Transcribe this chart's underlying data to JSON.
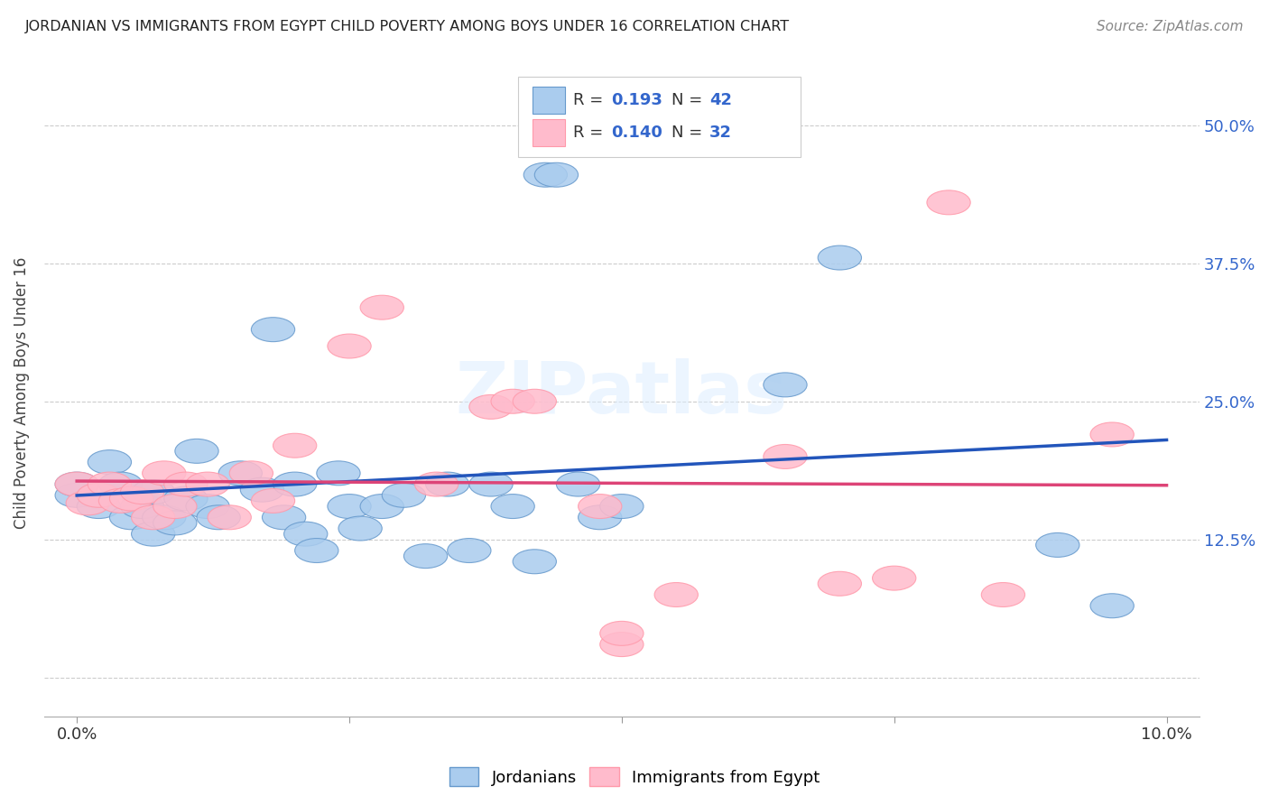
{
  "title": "JORDANIAN VS IMMIGRANTS FROM EGYPT CHILD POVERTY AMONG BOYS UNDER 16 CORRELATION CHART",
  "source": "Source: ZipAtlas.com",
  "ylabel": "Child Poverty Among Boys Under 16",
  "blue_color_face": "#AACCEE",
  "blue_color_edge": "#6699CC",
  "pink_color_face": "#FFBBCC",
  "pink_color_edge": "#FF99AA",
  "blue_line_color": "#2255BB",
  "pink_line_color": "#DD4477",
  "legend_R_blue": "0.193",
  "legend_N_blue": "42",
  "legend_R_pink": "0.140",
  "legend_N_pink": "32",
  "watermark": "ZIPatlas",
  "blue_accent": "#3366CC",
  "jordanians_x": [
    0.0,
    0.0,
    0.002,
    0.003,
    0.004,
    0.005,
    0.006,
    0.007,
    0.007,
    0.008,
    0.009,
    0.01,
    0.011,
    0.012,
    0.013,
    0.015,
    0.017,
    0.018,
    0.019,
    0.02,
    0.021,
    0.022,
    0.024,
    0.025,
    0.026,
    0.028,
    0.03,
    0.032,
    0.034,
    0.036,
    0.038,
    0.04,
    0.042,
    0.043,
    0.044,
    0.046,
    0.048,
    0.05,
    0.065,
    0.07,
    0.09,
    0.095
  ],
  "jordanians_y": [
    0.165,
    0.175,
    0.155,
    0.195,
    0.175,
    0.145,
    0.155,
    0.168,
    0.13,
    0.145,
    0.14,
    0.162,
    0.205,
    0.155,
    0.145,
    0.185,
    0.17,
    0.315,
    0.145,
    0.175,
    0.13,
    0.115,
    0.185,
    0.155,
    0.135,
    0.155,
    0.165,
    0.11,
    0.175,
    0.115,
    0.175,
    0.155,
    0.105,
    0.455,
    0.455,
    0.175,
    0.145,
    0.155,
    0.265,
    0.38,
    0.12,
    0.065
  ],
  "egypt_x": [
    0.0,
    0.001,
    0.002,
    0.003,
    0.004,
    0.005,
    0.006,
    0.007,
    0.008,
    0.009,
    0.01,
    0.012,
    0.014,
    0.016,
    0.018,
    0.02,
    0.025,
    0.028,
    0.033,
    0.038,
    0.04,
    0.042,
    0.048,
    0.05,
    0.05,
    0.055,
    0.065,
    0.07,
    0.075,
    0.08,
    0.085,
    0.095
  ],
  "egypt_y": [
    0.175,
    0.158,
    0.165,
    0.175,
    0.16,
    0.162,
    0.168,
    0.145,
    0.185,
    0.155,
    0.175,
    0.175,
    0.145,
    0.185,
    0.16,
    0.21,
    0.3,
    0.335,
    0.175,
    0.245,
    0.25,
    0.25,
    0.155,
    0.03,
    0.04,
    0.075,
    0.2,
    0.085,
    0.09,
    0.43,
    0.075,
    0.22
  ],
  "xlim": [
    -0.003,
    0.103
  ],
  "ylim": [
    -0.035,
    0.55
  ],
  "x_tick_vals": [
    0.0,
    0.025,
    0.05,
    0.075,
    0.1
  ],
  "x_tick_labels": [
    "0.0%",
    "",
    "",
    "",
    "10.0%"
  ],
  "y_tick_vals": [
    0.0,
    0.125,
    0.25,
    0.375,
    0.5
  ],
  "y_tick_labels": [
    "",
    "12.5%",
    "25.0%",
    "37.5%",
    "50.0%"
  ]
}
